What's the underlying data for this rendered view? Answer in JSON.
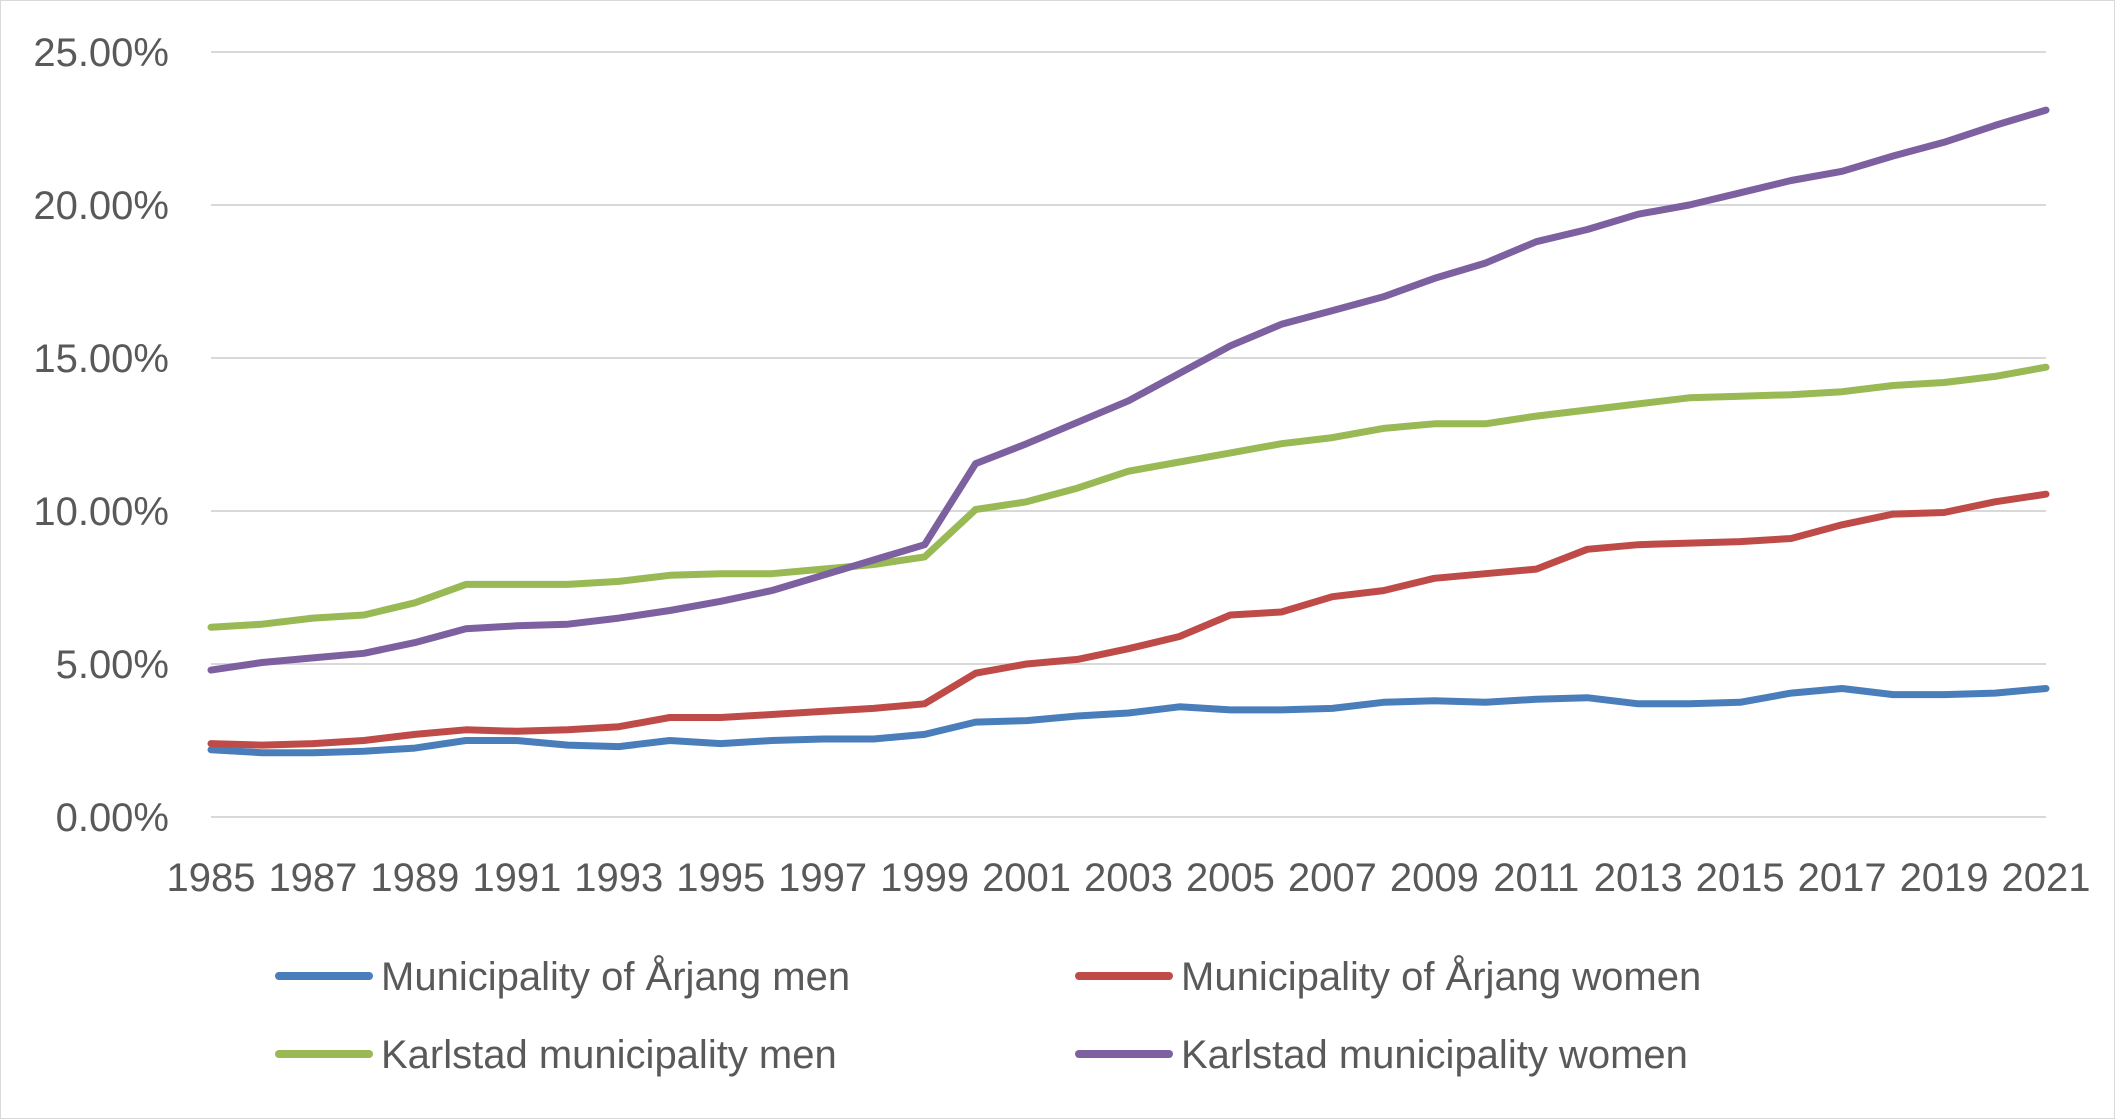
{
  "chart_data": {
    "type": "line",
    "title": "",
    "xlabel": "",
    "ylabel": "",
    "x": [
      1985,
      1986,
      1987,
      1988,
      1989,
      1990,
      1991,
      1992,
      1993,
      1994,
      1995,
      1996,
      1997,
      1998,
      1999,
      2000,
      2001,
      2002,
      2003,
      2004,
      2005,
      2006,
      2007,
      2008,
      2009,
      2010,
      2011,
      2012,
      2013,
      2014,
      2015,
      2016,
      2017,
      2018,
      2019,
      2020,
      2021
    ],
    "x_tick_labels": [
      "1985",
      "1987",
      "1989",
      "1991",
      "1993",
      "1995",
      "1997",
      "1999",
      "2001",
      "2003",
      "2005",
      "2007",
      "2009",
      "2011",
      "2013",
      "2015",
      "2017",
      "2019",
      "2021"
    ],
    "y_tick_labels": [
      "0.00%",
      "5.00%",
      "10.00%",
      "15.00%",
      "20.00%",
      "25.00%"
    ],
    "ylim": [
      0,
      25
    ],
    "grid": "horizontal",
    "legend_position": "bottom",
    "series": [
      {
        "name": "Municipality of Årjang men",
        "color": "#4a7ebb",
        "values": [
          2.2,
          2.1,
          2.1,
          2.15,
          2.25,
          2.5,
          2.5,
          2.35,
          2.3,
          2.5,
          2.4,
          2.5,
          2.55,
          2.55,
          2.7,
          3.1,
          3.15,
          3.3,
          3.4,
          3.6,
          3.5,
          3.5,
          3.55,
          3.75,
          3.8,
          3.75,
          3.85,
          3.9,
          3.7,
          3.7,
          3.75,
          4.05,
          4.2,
          4.0,
          4.0,
          4.05,
          4.2
        ]
      },
      {
        "name": "Municipality of Årjang women",
        "color": "#be4b48",
        "values": [
          2.4,
          2.35,
          2.4,
          2.5,
          2.7,
          2.85,
          2.8,
          2.85,
          2.95,
          3.25,
          3.25,
          3.35,
          3.45,
          3.55,
          3.7,
          4.7,
          5.0,
          5.15,
          5.5,
          5.9,
          6.6,
          6.7,
          7.2,
          7.4,
          7.8,
          7.95,
          8.1,
          8.75,
          8.9,
          8.95,
          9.0,
          9.1,
          9.55,
          9.9,
          9.95,
          10.3,
          10.55
        ]
      },
      {
        "name": "Karlstad municipality men",
        "color": "#98b954",
        "values": [
          6.2,
          6.3,
          6.5,
          6.6,
          7.0,
          7.6,
          7.6,
          7.6,
          7.7,
          7.9,
          7.95,
          7.95,
          8.1,
          8.25,
          8.5,
          10.05,
          10.3,
          10.75,
          11.3,
          11.6,
          11.9,
          12.2,
          12.4,
          12.7,
          12.85,
          12.85,
          13.1,
          13.3,
          13.5,
          13.7,
          13.75,
          13.8,
          13.9,
          14.1,
          14.2,
          14.4,
          14.7
        ]
      },
      {
        "name": "Karlstad municipality women",
        "color": "#7d60a0",
        "values": [
          4.8,
          5.05,
          5.2,
          5.35,
          5.7,
          6.15,
          6.25,
          6.3,
          6.5,
          6.75,
          7.05,
          7.4,
          7.9,
          8.4,
          8.9,
          11.55,
          12.2,
          12.9,
          13.6,
          14.5,
          15.4,
          16.1,
          16.55,
          17.0,
          17.6,
          18.1,
          18.8,
          19.2,
          19.7,
          20.0,
          20.4,
          20.8,
          21.1,
          21.6,
          22.05,
          22.6,
          23.1
        ]
      }
    ]
  }
}
